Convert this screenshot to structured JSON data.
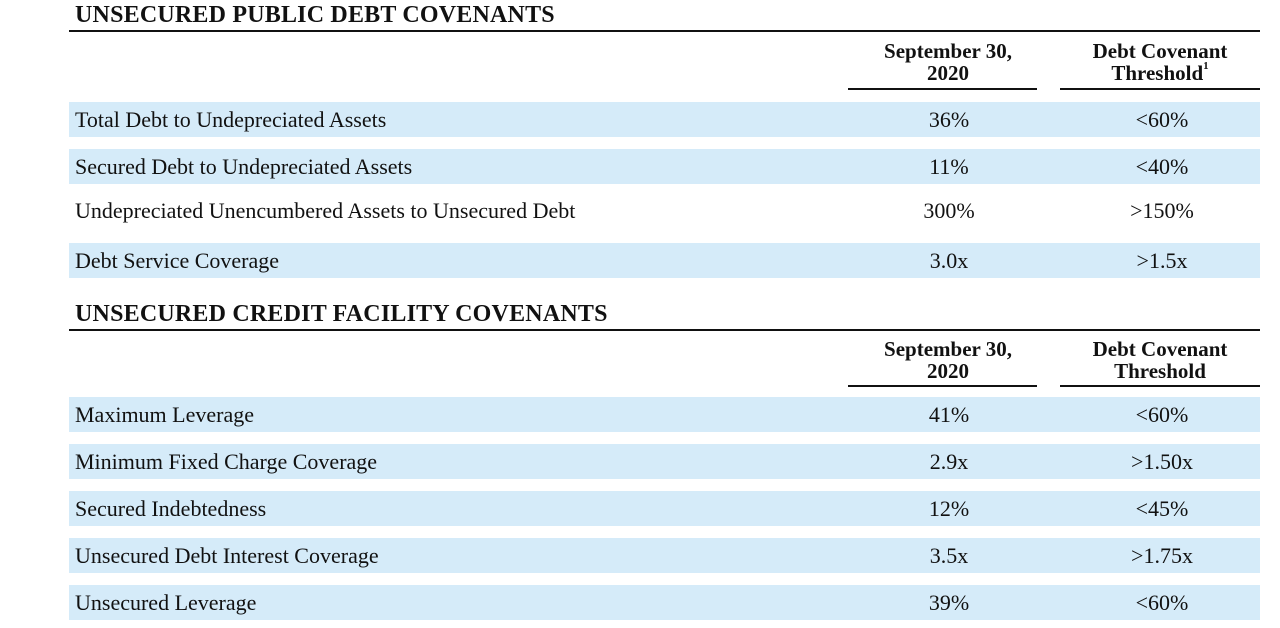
{
  "public_debt": {
    "title": "UNSECURED PUBLIC DEBT COVENANTS",
    "col1_line1": "September 30,",
    "col1_line2": "2020",
    "col2_line1": "Debt Covenant",
    "col2_line2": "Threshold",
    "col2_footnote": "1",
    "rows": [
      {
        "label": "Total Debt to Undepreciated Assets",
        "value": "36%",
        "threshold": "<60%"
      },
      {
        "label": "Secured Debt to Undepreciated Assets",
        "value": "11%",
        "threshold": "<40%"
      },
      {
        "label": "Undepreciated Unencumbered Assets  to Unsecured Debt",
        "value": "300%",
        "threshold": ">150%"
      },
      {
        "label": "Debt Service Coverage",
        "value": "3.0x",
        "threshold": ">1.5x"
      }
    ]
  },
  "credit_facility": {
    "title": "UNSECURED CREDIT FACILITY COVENANTS",
    "col1_line1": "September 30,",
    "col1_line2": "2020",
    "col2_line1": "Debt Covenant",
    "col2_line2": "Threshold",
    "rows": [
      {
        "label": "Maximum Leverage",
        "value": "41%",
        "threshold": "<60%"
      },
      {
        "label": "Minimum Fixed Charge Coverage",
        "value": "2.9x",
        "threshold": ">1.50x"
      },
      {
        "label": "Secured Indebtedness",
        "value": "12%",
        "threshold": "<45%"
      },
      {
        "label": "Unsecured Debt Interest Coverage",
        "value": "3.5x",
        "threshold": ">1.75x"
      },
      {
        "label": "Unsecured Leverage",
        "value": "39%",
        "threshold": "<60%"
      }
    ]
  },
  "colors": {
    "row_shade": "#d5ebf9",
    "text": "#111111",
    "rule": "#111111"
  }
}
